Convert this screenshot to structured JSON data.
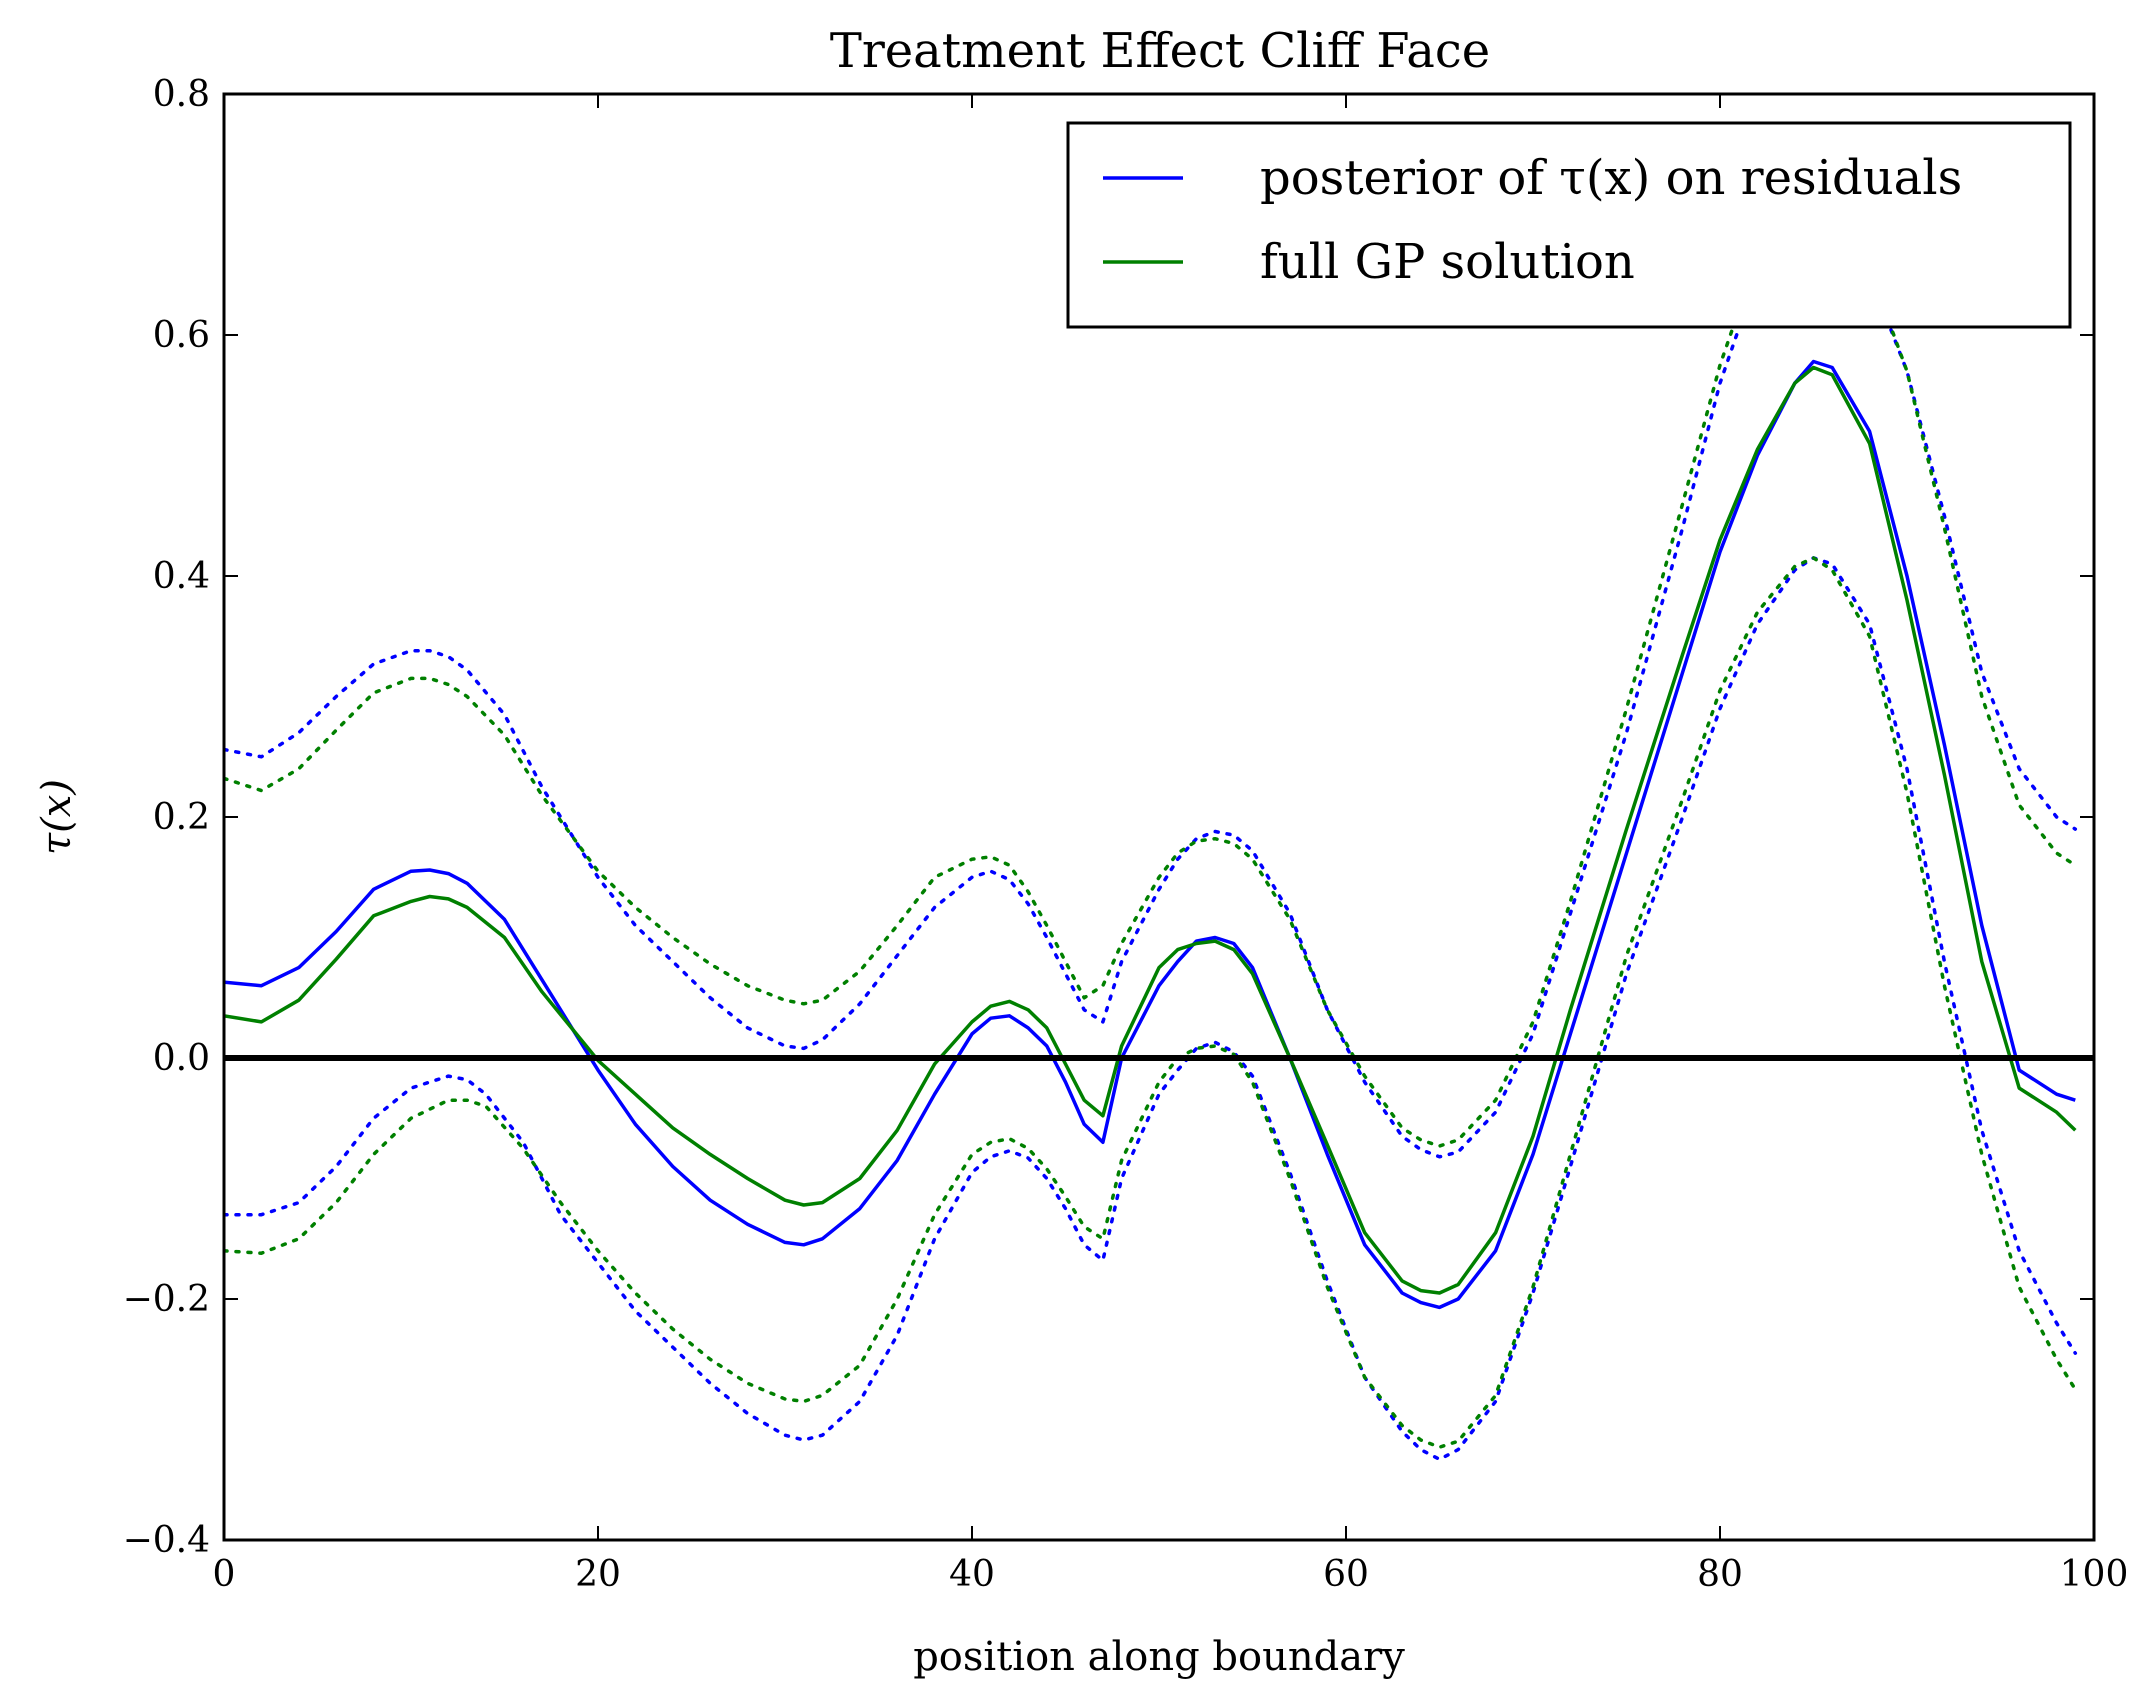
{
  "chart_data": {
    "type": "line",
    "title": "Treatment Effect Cliff Face",
    "xlabel": "position along boundary",
    "ylabel": "τ(x)",
    "xlim": [
      0,
      100
    ],
    "ylim": [
      -0.4,
      0.8
    ],
    "xticks": [
      0,
      20,
      40,
      60,
      80,
      100
    ],
    "xtick_labels": [
      "0",
      "20",
      "40",
      "60",
      "80",
      "100"
    ],
    "yticks": [
      -0.4,
      -0.2,
      0.0,
      0.2,
      0.4,
      0.6,
      0.8
    ],
    "ytick_labels": [
      "−0.4",
      "−0.2",
      "0.0",
      "0.2",
      "0.4",
      "0.6",
      "0.8"
    ],
    "grid": false,
    "legend_position": "top-right",
    "reference_line": {
      "y": 0.0,
      "color": "#000000"
    },
    "series": [
      {
        "name": "posterior of τ(x) on residuals",
        "color": "#0000ff",
        "style": "solid",
        "x": [
          0,
          2,
          4,
          6,
          8,
          10,
          11,
          12,
          13,
          15,
          17,
          20,
          22,
          24,
          26,
          28,
          30,
          31,
          32,
          34,
          36,
          38,
          40,
          41,
          42,
          43,
          44,
          45,
          46,
          47,
          48,
          50,
          51,
          52,
          53,
          54,
          55,
          57,
          59,
          61,
          63,
          64,
          65,
          66,
          68,
          70,
          72,
          75,
          78,
          80,
          82,
          84,
          85,
          86,
          88,
          90,
          92,
          94,
          96,
          98,
          99
        ],
        "y": [
          0.063,
          0.06,
          0.075,
          0.105,
          0.14,
          0.155,
          0.156,
          0.153,
          0.145,
          0.115,
          0.065,
          -0.01,
          -0.055,
          -0.09,
          -0.118,
          -0.138,
          -0.153,
          -0.155,
          -0.15,
          -0.125,
          -0.085,
          -0.03,
          0.02,
          0.033,
          0.035,
          0.025,
          0.01,
          -0.02,
          -0.055,
          -0.07,
          0.0,
          0.06,
          0.08,
          0.097,
          0.1,
          0.095,
          0.075,
          0.0,
          -0.08,
          -0.155,
          -0.195,
          -0.203,
          -0.207,
          -0.2,
          -0.16,
          -0.08,
          0.02,
          0.17,
          0.32,
          0.42,
          0.5,
          0.56,
          0.578,
          0.573,
          0.52,
          0.4,
          0.26,
          0.11,
          -0.01,
          -0.03,
          -0.035
        ]
      },
      {
        "name": "full GP solution",
        "color": "#008000",
        "style": "solid",
        "x": [
          0,
          2,
          4,
          6,
          8,
          10,
          11,
          12,
          13,
          15,
          17,
          20,
          22,
          24,
          26,
          28,
          30,
          31,
          32,
          34,
          36,
          38,
          40,
          41,
          42,
          43,
          44,
          45,
          46,
          47,
          48,
          50,
          51,
          52,
          53,
          54,
          55,
          57,
          59,
          61,
          63,
          64,
          65,
          66,
          68,
          70,
          72,
          75,
          78,
          80,
          82,
          84,
          85,
          86,
          88,
          90,
          92,
          94,
          96,
          98,
          99
        ],
        "y": [
          0.035,
          0.03,
          0.048,
          0.082,
          0.118,
          0.13,
          0.134,
          0.132,
          0.125,
          0.1,
          0.055,
          -0.002,
          -0.03,
          -0.058,
          -0.08,
          -0.1,
          -0.118,
          -0.122,
          -0.12,
          -0.1,
          -0.06,
          -0.005,
          0.03,
          0.043,
          0.047,
          0.04,
          0.025,
          -0.005,
          -0.035,
          -0.048,
          0.01,
          0.075,
          0.09,
          0.095,
          0.097,
          0.09,
          0.07,
          0.0,
          -0.072,
          -0.145,
          -0.185,
          -0.193,
          -0.195,
          -0.188,
          -0.145,
          -0.065,
          0.04,
          0.19,
          0.335,
          0.43,
          0.505,
          0.56,
          0.573,
          0.567,
          0.51,
          0.38,
          0.235,
          0.08,
          -0.025,
          -0.045,
          -0.06
        ]
      },
      {
        "color": "#0000ff",
        "style": "dotted",
        "x": [
          0,
          2,
          4,
          6,
          8,
          10,
          11,
          12,
          13,
          15,
          17,
          20,
          22,
          24,
          26,
          28,
          30,
          31,
          32,
          34,
          36,
          38,
          40,
          41,
          42,
          43,
          44,
          45,
          46,
          47,
          48,
          50,
          51,
          52,
          53,
          54,
          55,
          57,
          59,
          61,
          63,
          64,
          65,
          66,
          68,
          70,
          72,
          75,
          78,
          80,
          82,
          84,
          85,
          86,
          88,
          90,
          92,
          94,
          96,
          98,
          99
        ],
        "y": [
          0.256,
          0.25,
          0.27,
          0.3,
          0.327,
          0.338,
          0.338,
          0.333,
          0.322,
          0.285,
          0.225,
          0.15,
          0.11,
          0.08,
          0.05,
          0.025,
          0.01,
          0.008,
          0.015,
          0.045,
          0.085,
          0.125,
          0.15,
          0.155,
          0.148,
          0.128,
          0.1,
          0.07,
          0.04,
          0.03,
          0.08,
          0.14,
          0.165,
          0.182,
          0.188,
          0.185,
          0.172,
          0.12,
          0.04,
          -0.02,
          -0.065,
          -0.076,
          -0.082,
          -0.078,
          -0.045,
          0.02,
          0.12,
          0.27,
          0.44,
          0.56,
          0.65,
          0.7,
          0.71,
          0.7,
          0.65,
          0.57,
          0.45,
          0.32,
          0.24,
          0.2,
          0.19
        ]
      },
      {
        "color": "#0000ff",
        "style": "dotted",
        "x": [
          0,
          2,
          4,
          6,
          8,
          10,
          12,
          13,
          14,
          16,
          18,
          20,
          22,
          24,
          26,
          28,
          30,
          31,
          32,
          34,
          36,
          38,
          40,
          41,
          42,
          43,
          44,
          45,
          46,
          47,
          48,
          50,
          51,
          52,
          53,
          54,
          55,
          57,
          59,
          61,
          63,
          64,
          65,
          66,
          68,
          70,
          72,
          75,
          78,
          80,
          82,
          84,
          85,
          86,
          88,
          90,
          92,
          94,
          96,
          98,
          99
        ],
        "y": [
          -0.13,
          -0.13,
          -0.12,
          -0.09,
          -0.05,
          -0.025,
          -0.015,
          -0.018,
          -0.03,
          -0.07,
          -0.13,
          -0.17,
          -0.21,
          -0.24,
          -0.27,
          -0.295,
          -0.313,
          -0.317,
          -0.313,
          -0.285,
          -0.23,
          -0.15,
          -0.095,
          -0.082,
          -0.077,
          -0.083,
          -0.1,
          -0.125,
          -0.155,
          -0.168,
          -0.1,
          -0.03,
          -0.01,
          0.008,
          0.013,
          0.005,
          -0.015,
          -0.095,
          -0.185,
          -0.265,
          -0.31,
          -0.325,
          -0.333,
          -0.325,
          -0.285,
          -0.195,
          -0.09,
          0.07,
          0.2,
          0.29,
          0.36,
          0.405,
          0.415,
          0.41,
          0.36,
          0.24,
          0.08,
          -0.06,
          -0.16,
          -0.22,
          -0.245
        ]
      },
      {
        "color": "#008000",
        "style": "dotted",
        "x": [
          0,
          2,
          4,
          6,
          8,
          10,
          11,
          12,
          13,
          15,
          17,
          20,
          22,
          24,
          26,
          28,
          30,
          31,
          32,
          34,
          36,
          38,
          40,
          41,
          42,
          43,
          44,
          45,
          46,
          47,
          48,
          50,
          51,
          52,
          53,
          54,
          55,
          57,
          59,
          61,
          63,
          64,
          65,
          66,
          68,
          70,
          72,
          75,
          78,
          80,
          82,
          84,
          85,
          86,
          88,
          90,
          92,
          94,
          96,
          98,
          99
        ],
        "y": [
          0.232,
          0.222,
          0.24,
          0.272,
          0.303,
          0.315,
          0.315,
          0.31,
          0.3,
          0.268,
          0.218,
          0.155,
          0.125,
          0.1,
          0.078,
          0.06,
          0.048,
          0.045,
          0.048,
          0.072,
          0.11,
          0.15,
          0.165,
          0.167,
          0.16,
          0.138,
          0.11,
          0.08,
          0.05,
          0.06,
          0.095,
          0.15,
          0.17,
          0.18,
          0.182,
          0.178,
          0.165,
          0.115,
          0.04,
          -0.015,
          -0.058,
          -0.068,
          -0.073,
          -0.068,
          -0.035,
          0.03,
          0.13,
          0.29,
          0.46,
          0.575,
          0.665,
          0.71,
          0.72,
          0.71,
          0.655,
          0.57,
          0.44,
          0.3,
          0.21,
          0.17,
          0.16
        ]
      },
      {
        "color": "#008000",
        "style": "dotted",
        "x": [
          0,
          2,
          4,
          6,
          8,
          10,
          12,
          13,
          14,
          16,
          18,
          20,
          22,
          24,
          26,
          28,
          30,
          31,
          32,
          34,
          36,
          38,
          40,
          41,
          42,
          43,
          44,
          45,
          46,
          47,
          48,
          50,
          51,
          52,
          53,
          54,
          55,
          57,
          59,
          61,
          63,
          64,
          65,
          66,
          68,
          70,
          72,
          75,
          78,
          80,
          82,
          84,
          85,
          86,
          88,
          90,
          92,
          94,
          96,
          98,
          99
        ],
        "y": [
          -0.16,
          -0.162,
          -0.15,
          -0.12,
          -0.08,
          -0.05,
          -0.035,
          -0.035,
          -0.04,
          -0.075,
          -0.12,
          -0.16,
          -0.195,
          -0.225,
          -0.25,
          -0.27,
          -0.283,
          -0.285,
          -0.28,
          -0.255,
          -0.2,
          -0.13,
          -0.08,
          -0.07,
          -0.067,
          -0.075,
          -0.092,
          -0.115,
          -0.14,
          -0.15,
          -0.085,
          -0.02,
          0.0,
          0.008,
          0.01,
          0.003,
          -0.02,
          -0.1,
          -0.19,
          -0.265,
          -0.305,
          -0.317,
          -0.323,
          -0.318,
          -0.28,
          -0.19,
          -0.08,
          0.085,
          0.215,
          0.305,
          0.37,
          0.408,
          0.415,
          0.405,
          0.35,
          0.22,
          0.06,
          -0.08,
          -0.19,
          -0.25,
          -0.275
        ]
      }
    ]
  }
}
